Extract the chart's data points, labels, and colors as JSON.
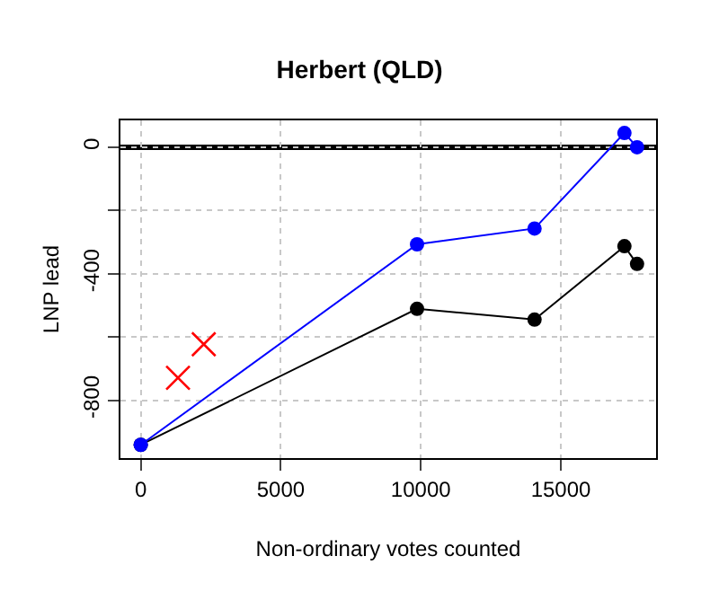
{
  "chart_data": {
    "type": "line",
    "title": "Herbert (QLD)",
    "xlabel": "Non-ordinary votes counted",
    "ylabel": "LNP lead",
    "x": [
      0,
      9865,
      14060,
      17270,
      17720
    ],
    "series": [
      {
        "color": "#0000ff",
        "values": [
          -941,
          -307,
          -257,
          45,
          0
        ],
        "marker": "circle"
      },
      {
        "color": "#000000",
        "values": [
          -941,
          -511,
          -545,
          -313,
          -369
        ],
        "marker": "circle"
      },
      {
        "type": "scatter",
        "color": "#ff0000",
        "x": [
          1330,
          2250
        ],
        "values": [
          -729,
          -623
        ],
        "marker": "cross"
      }
    ],
    "xlim": [
      -725,
      18400
    ],
    "ylim": [
      -983,
      85
    ],
    "xticks": [
      0,
      5000,
      10000,
      15000
    ],
    "yticks": [
      0,
      {
        "value": -200,
        "label": null
      },
      -400,
      {
        "value": -600,
        "label": null
      },
      -800
    ],
    "ref_lines": [
      {
        "axis": "y",
        "value": 0,
        "color": "#000000"
      }
    ],
    "grid": true,
    "legend": false
  }
}
